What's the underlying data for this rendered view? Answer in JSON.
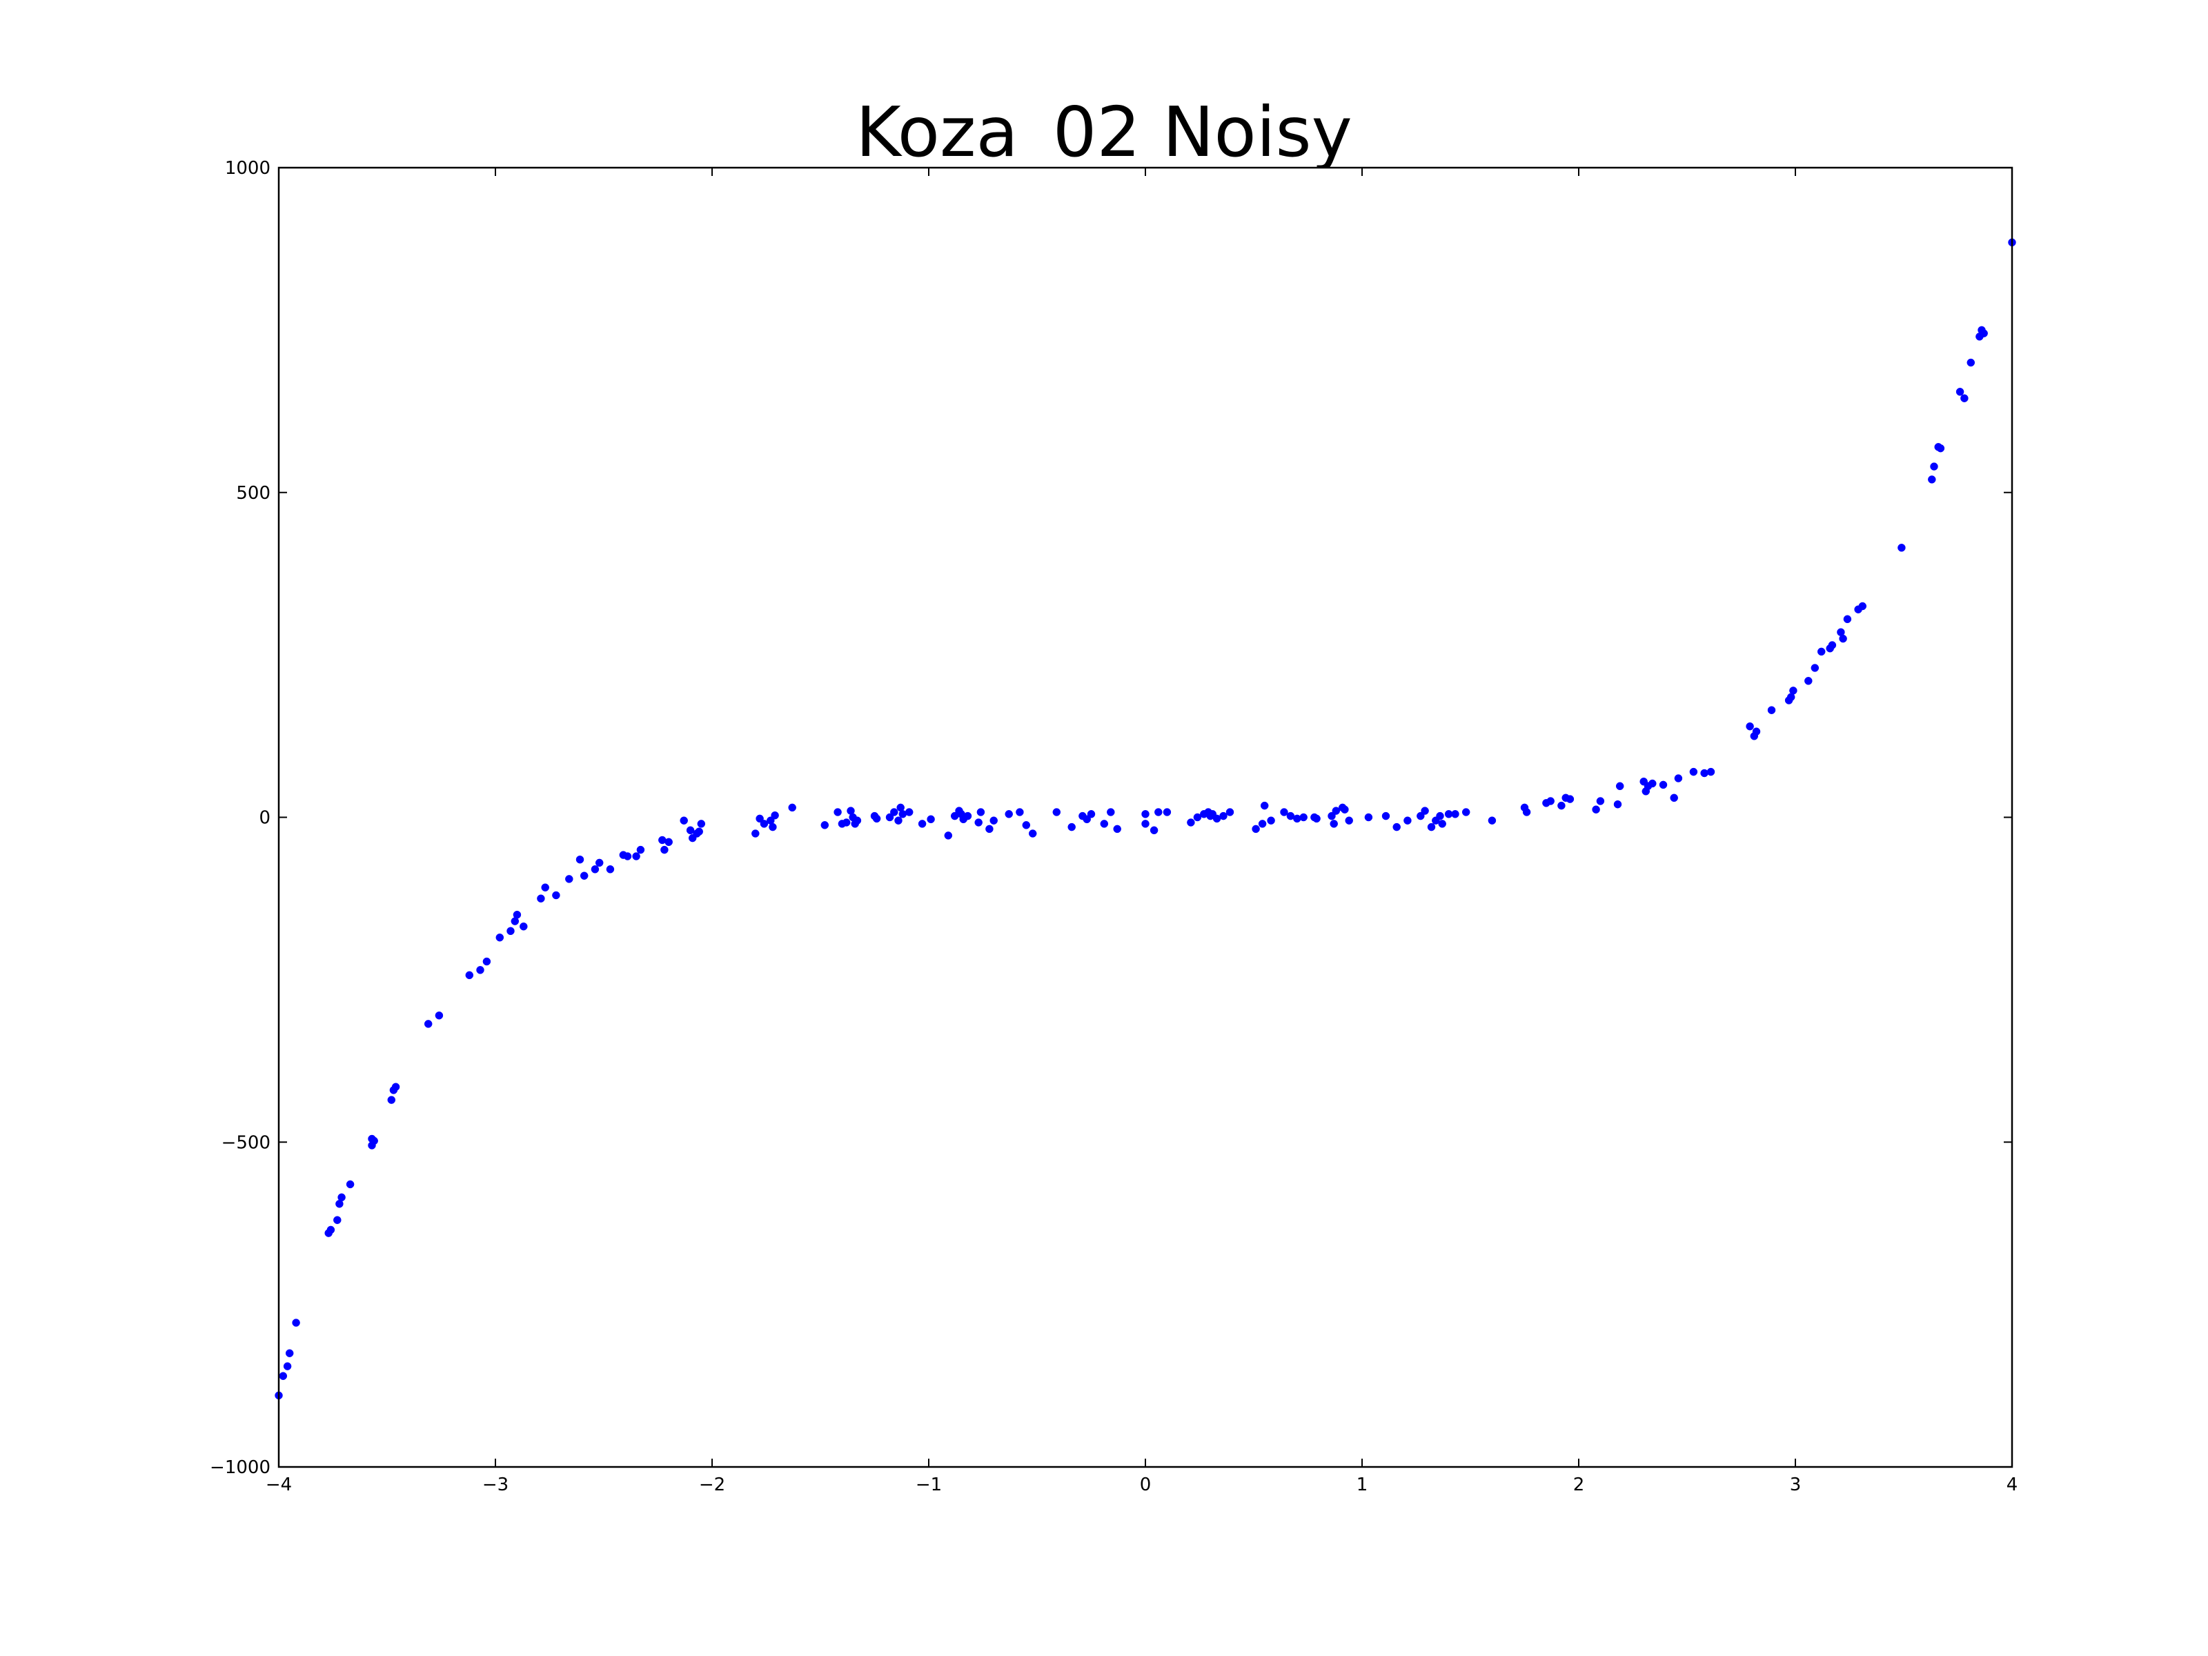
{
  "chart_data": {
    "type": "scatter",
    "title": "Koza_02 Noisy",
    "xlabel": "",
    "ylabel": "",
    "xlim": [
      -4,
      4
    ],
    "ylim": [
      -1000,
      1000
    ],
    "grid": false,
    "point_color": "#0000ff",
    "x_ticks": [
      -4,
      -3,
      -2,
      -1,
      0,
      1,
      2,
      3,
      4
    ],
    "x_tick_labels": [
      "−4",
      "−3",
      "−2",
      "−1",
      "0",
      "1",
      "2",
      "3",
      "4"
    ],
    "y_ticks": [
      -1000,
      -500,
      0,
      500,
      1000
    ],
    "y_tick_labels": [
      "−1000",
      "−500",
      "0",
      "500",
      "1000"
    ],
    "series": [
      {
        "points": [
          [
            -4.0,
            -890
          ],
          [
            -3.98,
            -860
          ],
          [
            -3.96,
            -845
          ],
          [
            -3.95,
            -825
          ],
          [
            -3.92,
            -778
          ],
          [
            -3.77,
            -640
          ],
          [
            -3.76,
            -635
          ],
          [
            -3.73,
            -620
          ],
          [
            -3.72,
            -595
          ],
          [
            -3.71,
            -585
          ],
          [
            -3.67,
            -565
          ],
          [
            -3.57,
            -505
          ],
          [
            -3.57,
            -495
          ],
          [
            -3.56,
            -498
          ],
          [
            -3.48,
            -435
          ],
          [
            -3.47,
            -420
          ],
          [
            -3.46,
            -415
          ],
          [
            -3.31,
            -318
          ],
          [
            -3.26,
            -305
          ],
          [
            -3.12,
            -243
          ],
          [
            -3.07,
            -235
          ],
          [
            -3.04,
            -222
          ],
          [
            -2.98,
            -185
          ],
          [
            -2.93,
            -175
          ],
          [
            -2.91,
            -160
          ],
          [
            -2.9,
            -150
          ],
          [
            -2.87,
            -168
          ],
          [
            -2.79,
            -125
          ],
          [
            -2.77,
            -108
          ],
          [
            -2.72,
            -120
          ],
          [
            -2.66,
            -95
          ],
          [
            -2.61,
            -65
          ],
          [
            -2.59,
            -90
          ],
          [
            -2.54,
            -80
          ],
          [
            -2.52,
            -70
          ],
          [
            -2.47,
            -80
          ],
          [
            -2.41,
            -58
          ],
          [
            -2.39,
            -60
          ],
          [
            -2.35,
            -60
          ],
          [
            -2.33,
            -50
          ],
          [
            -2.23,
            -35
          ],
          [
            -2.22,
            -50
          ],
          [
            -2.2,
            -38
          ],
          [
            -2.13,
            -5
          ],
          [
            -2.1,
            -20
          ],
          [
            -2.09,
            -32
          ],
          [
            -2.07,
            -25
          ],
          [
            -2.06,
            -22
          ],
          [
            -2.05,
            -10
          ],
          [
            -1.8,
            -25
          ],
          [
            -1.78,
            -2
          ],
          [
            -1.76,
            -10
          ],
          [
            -1.73,
            -5
          ],
          [
            -1.72,
            -15
          ],
          [
            -1.71,
            3
          ],
          [
            -1.63,
            15
          ],
          [
            -1.48,
            -12
          ],
          [
            -1.42,
            8
          ],
          [
            -1.4,
            -10
          ],
          [
            -1.38,
            -8
          ],
          [
            -1.36,
            10
          ],
          [
            -1.35,
            0
          ],
          [
            -1.34,
            -10
          ],
          [
            -1.33,
            -5
          ],
          [
            -1.25,
            2
          ],
          [
            -1.24,
            -2
          ],
          [
            -1.18,
            0
          ],
          [
            -1.16,
            8
          ],
          [
            -1.14,
            -5
          ],
          [
            -1.13,
            15
          ],
          [
            -1.12,
            5
          ],
          [
            -1.09,
            8
          ],
          [
            -1.03,
            -10
          ],
          [
            -0.99,
            -3
          ],
          [
            -0.91,
            -28
          ],
          [
            -0.88,
            2
          ],
          [
            -0.86,
            10
          ],
          [
            -0.85,
            5
          ],
          [
            -0.84,
            -3
          ],
          [
            -0.82,
            2
          ],
          [
            -0.77,
            -8
          ],
          [
            -0.76,
            8
          ],
          [
            -0.72,
            -18
          ],
          [
            -0.7,
            -5
          ],
          [
            -0.63,
            5
          ],
          [
            -0.58,
            8
          ],
          [
            -0.55,
            -12
          ],
          [
            -0.52,
            -25
          ],
          [
            -0.41,
            8
          ],
          [
            -0.34,
            -15
          ],
          [
            -0.29,
            2
          ],
          [
            -0.27,
            -3
          ],
          [
            -0.25,
            5
          ],
          [
            -0.19,
            -10
          ],
          [
            -0.16,
            8
          ],
          [
            -0.13,
            -18
          ],
          [
            0.0,
            -10
          ],
          [
            0.0,
            5
          ],
          [
            0.04,
            -20
          ],
          [
            0.06,
            8
          ],
          [
            0.1,
            8
          ],
          [
            0.21,
            -8
          ],
          [
            0.24,
            0
          ],
          [
            0.27,
            5
          ],
          [
            0.29,
            8
          ],
          [
            0.3,
            2
          ],
          [
            0.31,
            5
          ],
          [
            0.33,
            -2
          ],
          [
            0.36,
            2
          ],
          [
            0.39,
            8
          ],
          [
            0.51,
            -18
          ],
          [
            0.54,
            -10
          ],
          [
            0.55,
            18
          ],
          [
            0.58,
            -5
          ],
          [
            0.64,
            8
          ],
          [
            0.67,
            2
          ],
          [
            0.7,
            -2
          ],
          [
            0.73,
            0
          ],
          [
            0.78,
            0
          ],
          [
            0.79,
            -2
          ],
          [
            0.86,
            2
          ],
          [
            0.87,
            -10
          ],
          [
            0.88,
            10
          ],
          [
            0.91,
            15
          ],
          [
            0.92,
            12
          ],
          [
            0.94,
            -5
          ],
          [
            1.03,
            0
          ],
          [
            1.11,
            2
          ],
          [
            1.16,
            -15
          ],
          [
            1.21,
            -5
          ],
          [
            1.27,
            2
          ],
          [
            1.29,
            10
          ],
          [
            1.32,
            -15
          ],
          [
            1.34,
            -5
          ],
          [
            1.36,
            2
          ],
          [
            1.37,
            -10
          ],
          [
            1.4,
            5
          ],
          [
            1.43,
            5
          ],
          [
            1.48,
            8
          ],
          [
            1.6,
            -5
          ],
          [
            1.75,
            15
          ],
          [
            1.76,
            8
          ],
          [
            1.85,
            22
          ],
          [
            1.87,
            25
          ],
          [
            1.92,
            18
          ],
          [
            1.94,
            30
          ],
          [
            1.96,
            28
          ],
          [
            2.08,
            12
          ],
          [
            2.1,
            25
          ],
          [
            2.18,
            20
          ],
          [
            2.19,
            48
          ],
          [
            2.3,
            55
          ],
          [
            2.31,
            40
          ],
          [
            2.32,
            48
          ],
          [
            2.34,
            52
          ],
          [
            2.39,
            50
          ],
          [
            2.44,
            30
          ],
          [
            2.46,
            60
          ],
          [
            2.53,
            70
          ],
          [
            2.58,
            68
          ],
          [
            2.61,
            70
          ],
          [
            2.79,
            140
          ],
          [
            2.81,
            125
          ],
          [
            2.82,
            132
          ],
          [
            2.89,
            165
          ],
          [
            2.97,
            180
          ],
          [
            2.98,
            185
          ],
          [
            2.99,
            195
          ],
          [
            3.06,
            210
          ],
          [
            3.09,
            230
          ],
          [
            3.12,
            255
          ],
          [
            3.16,
            260
          ],
          [
            3.17,
            265
          ],
          [
            3.21,
            285
          ],
          [
            3.22,
            275
          ],
          [
            3.24,
            305
          ],
          [
            3.29,
            320
          ],
          [
            3.31,
            325
          ],
          [
            3.49,
            415
          ],
          [
            3.63,
            520
          ],
          [
            3.64,
            540
          ],
          [
            3.66,
            570
          ],
          [
            3.67,
            568
          ],
          [
            3.76,
            655
          ],
          [
            3.78,
            645
          ],
          [
            3.81,
            700
          ],
          [
            3.85,
            740
          ],
          [
            3.86,
            750
          ],
          [
            3.87,
            745
          ],
          [
            4.0,
            885
          ]
        ]
      }
    ]
  }
}
